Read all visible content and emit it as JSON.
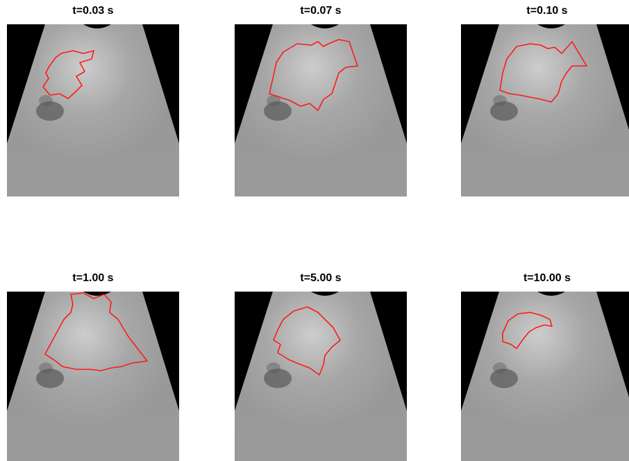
{
  "panels": [
    {
      "title": "t=0.03 s"
    },
    {
      "title": "t=0.07 s"
    },
    {
      "title": "t=0.10 s"
    },
    {
      "title": "t=1.00 s"
    },
    {
      "title": "t=5.00 s"
    },
    {
      "title": "t=10.00 s"
    }
  ]
}
